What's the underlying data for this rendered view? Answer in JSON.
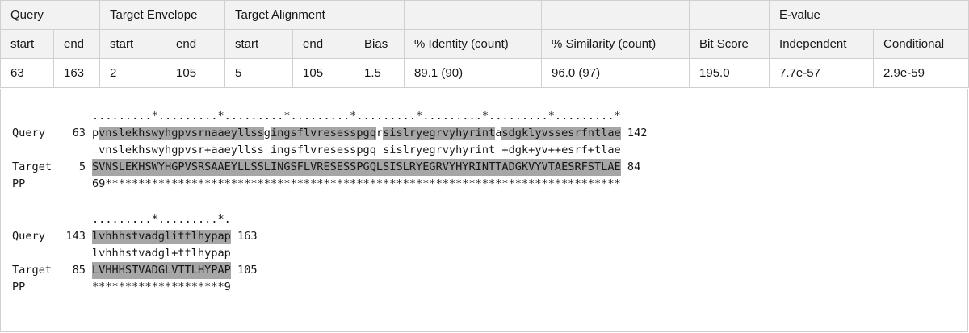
{
  "table": {
    "group_headers": {
      "query": "Query",
      "target_envelope": "Target Envelope",
      "target_alignment": "Target Alignment",
      "evalue": "E-value"
    },
    "columns": [
      "start",
      "end",
      "start",
      "end",
      "start",
      "end",
      "Bias",
      "% Identity (count)",
      "% Similarity (count)",
      "Bit Score",
      "Independent",
      "Conditional"
    ],
    "rows": [
      [
        "63",
        "163",
        "2",
        "105",
        "5",
        "105",
        "1.5",
        "89.1 (90)",
        "96.0 (97)",
        "195.0",
        "7.7e-57",
        "2.9e-59"
      ]
    ]
  },
  "alignment": {
    "blocks": [
      {
        "ruler": ".........*.........*.........*.........*.........*.........*.........*.........*",
        "query": {
          "label": "Query",
          "start": "63",
          "seq": "pvnslekhswyhgpvsrnaaeyllssgingsflvresesspgqrsislryegrvyhyrintasdgklyvssesrfntlae",
          "end": "142"
        },
        "match": " vnslekhswyhgpvsr+aaeyllss ingsflvresesspgq sislryegrvyhyrint +dgk+yv++esrf+tlae",
        "target": {
          "label": "Target",
          "start": "5",
          "seq": "SVNSLEKHSWYHGPVSRSAAEYLLSSLINGSFLVRESESSPGQLSISLRYEGRVYHYRINTTADGKVYVTAESRFSTLAE",
          "end": "84"
        },
        "pp": {
          "label": "PP",
          "seq": "69******************************************************************************"
        }
      },
      {
        "ruler": ".........*.........*.",
        "query": {
          "label": "Query",
          "start": "143",
          "seq": "lvhhhstvadglittlhypap",
          "end": "163"
        },
        "match": "lvhhhstvadgl+ttlhypap",
        "target": {
          "label": "Target",
          "start": "85",
          "seq": "LVHHHSTVADGLVTTLHYPAP",
          "end": "105"
        },
        "pp": {
          "label": "PP",
          "seq": "********************9"
        }
      }
    ]
  }
}
